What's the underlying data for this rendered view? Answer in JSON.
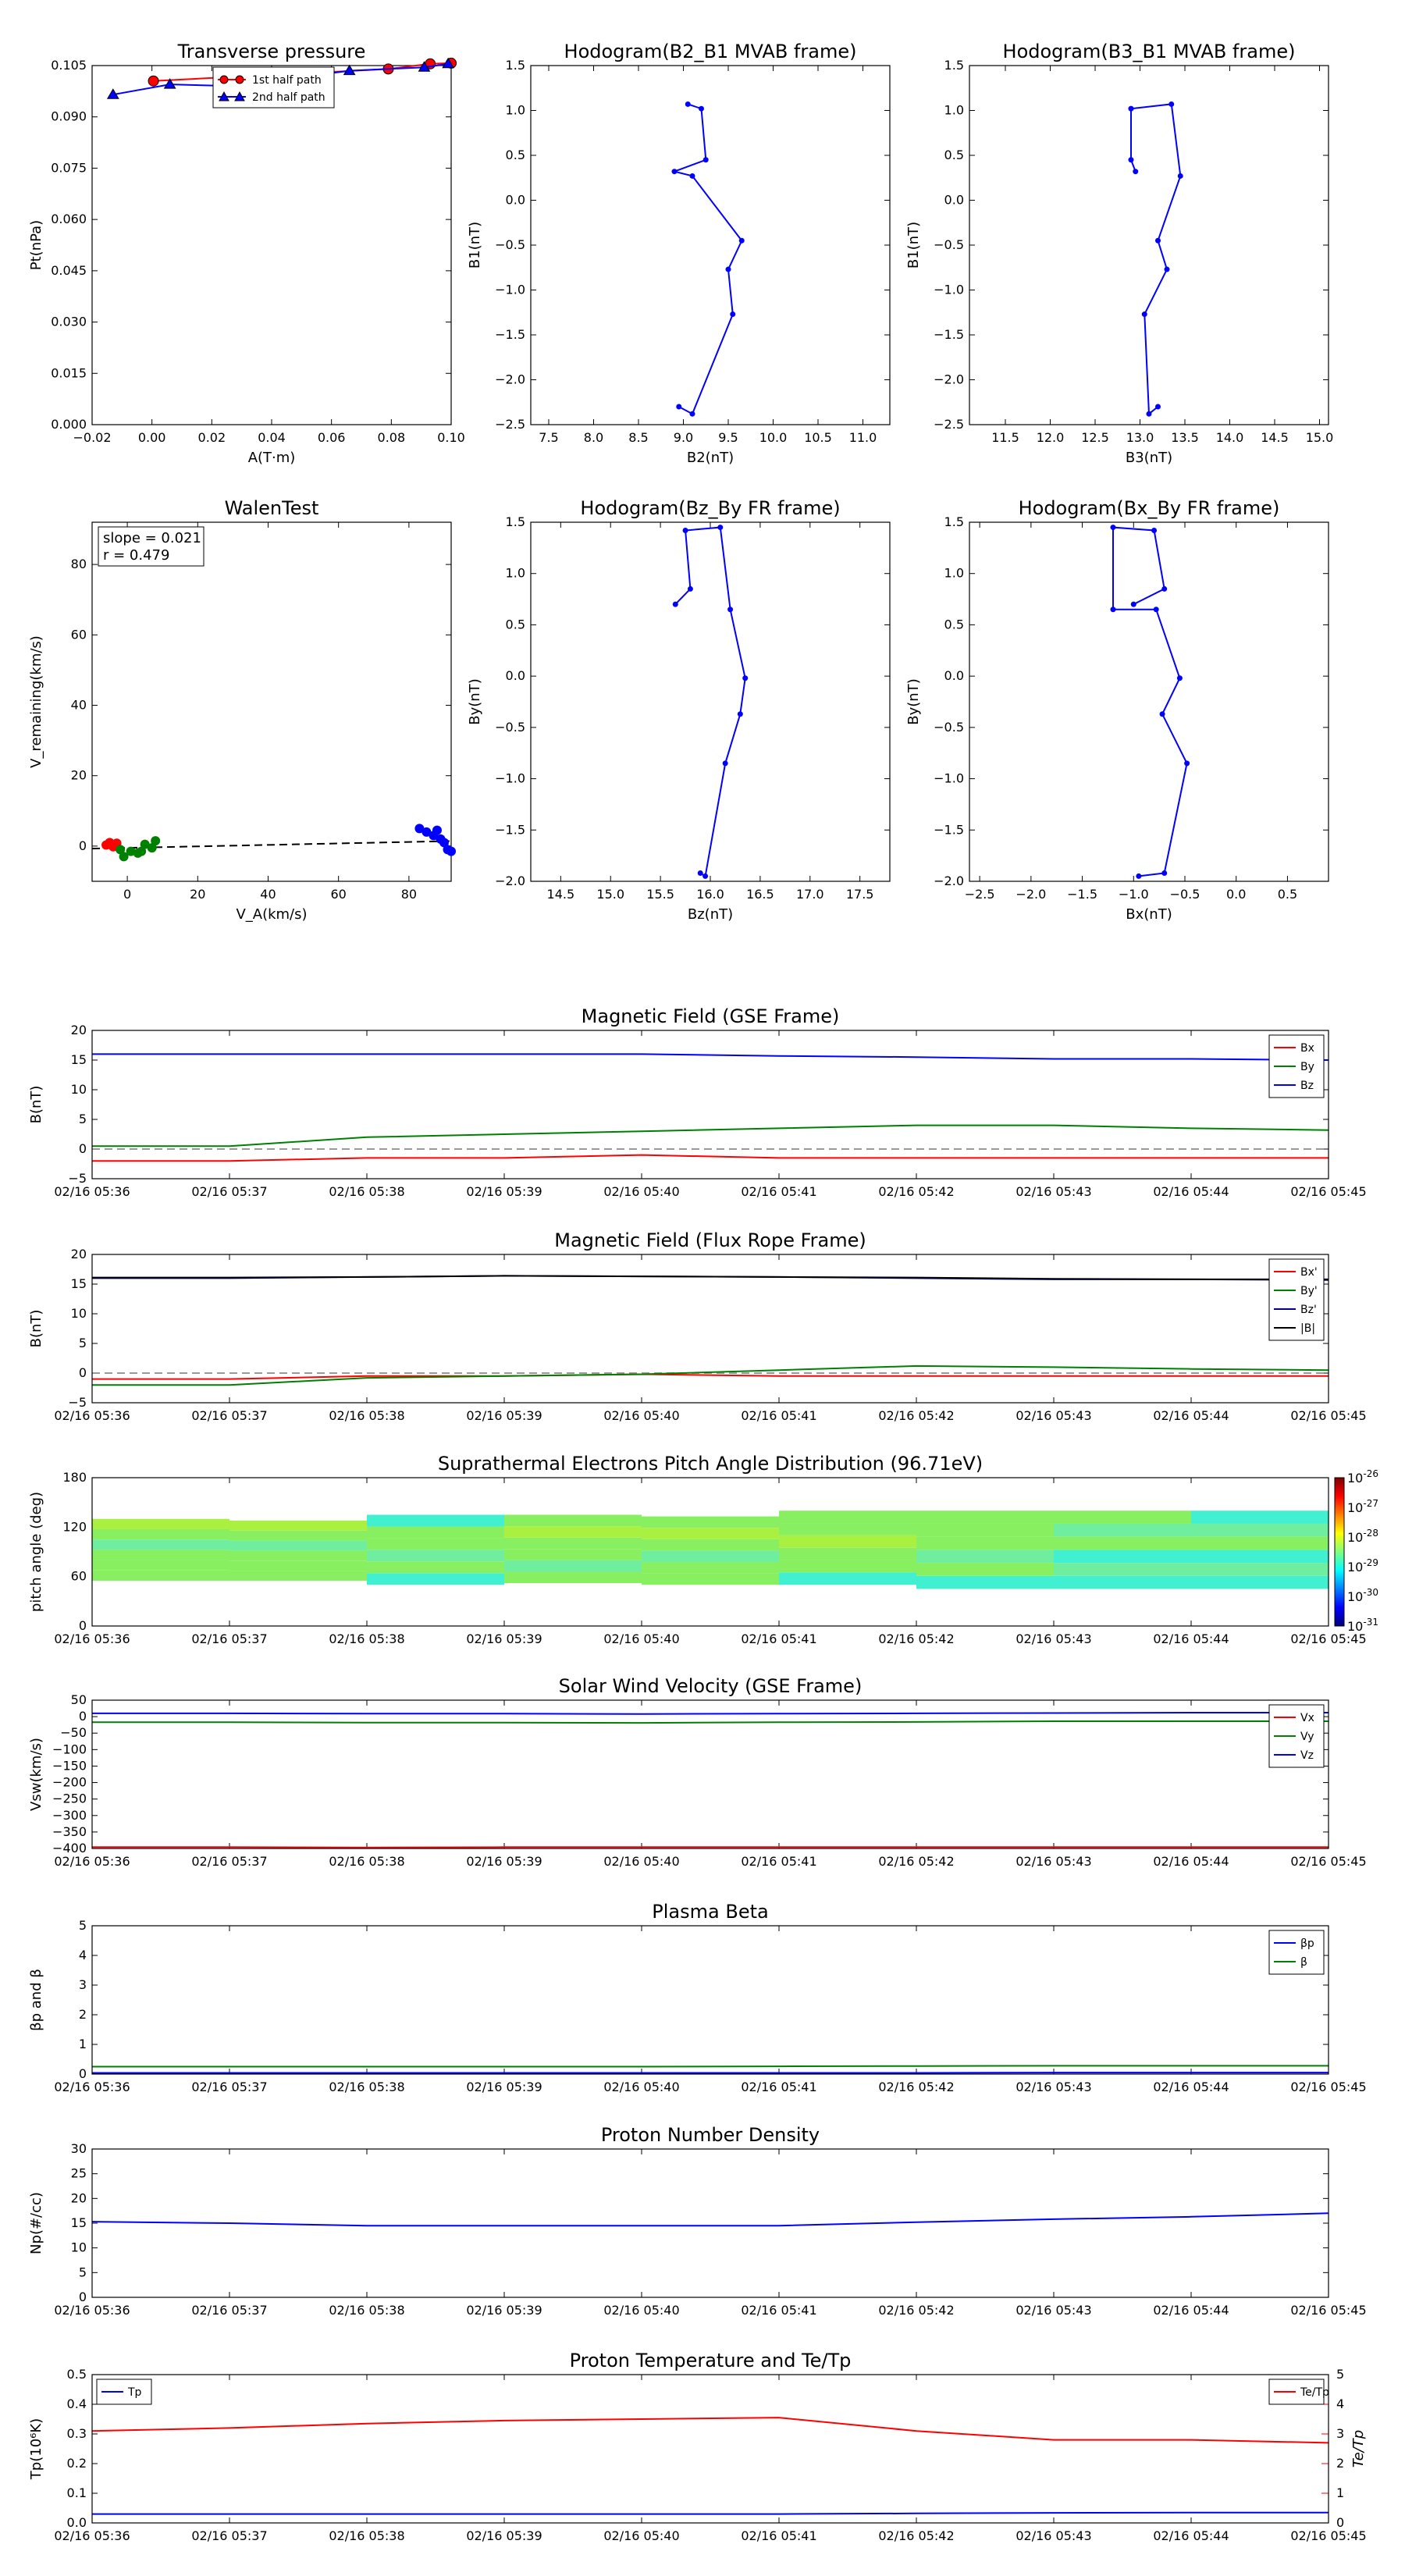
{
  "figure": {
    "background": "#ffffff"
  },
  "chart_data": [
    {
      "id": "pt",
      "type": "scatter",
      "title": "Transverse pressure",
      "xlabel": "A(T·m)",
      "ylabel": "Pt(nPa)",
      "xlim": [
        -0.02,
        0.1
      ],
      "ylim": [
        0,
        0.105
      ],
      "xticks": [
        -0.02,
        0.0,
        0.02,
        0.04,
        0.06,
        0.08,
        0.1
      ],
      "xticklabels": [
        "−0.02",
        "0.00",
        "0.02",
        "0.04",
        "0.06",
        "0.08",
        "0.10"
      ],
      "yticks": [
        0,
        0.015,
        0.03,
        0.045,
        0.06,
        0.075,
        0.09,
        0.105
      ],
      "yticklabels": [
        "0.000",
        "0.015",
        "0.030",
        "0.045",
        "0.060",
        "0.075",
        "0.090",
        "0.105"
      ],
      "legend": "top-center",
      "series": [
        {
          "name": "1st half path",
          "color": "#ff0000",
          "marker": "circle",
          "x": [
            0.0005,
            0.079,
            0.093,
            0.1
          ],
          "y": [
            0.1005,
            0.104,
            0.1055,
            0.1057
          ]
        },
        {
          "name": "2nd half path",
          "color": "#0000ff",
          "marker": "triangle",
          "x": [
            -0.013,
            0.006,
            0.027,
            0.066,
            0.091,
            0.099
          ],
          "y": [
            0.0965,
            0.0995,
            0.099,
            0.1035,
            0.1045,
            0.1055
          ]
        }
      ]
    },
    {
      "id": "hodo1",
      "type": "line",
      "title": "Hodogram(B2_B1 MVAB frame)",
      "xlabel": "B2(nT)",
      "ylabel": "B1(nT)",
      "xlim": [
        7.3,
        11.3
      ],
      "ylim": [
        -2.5,
        1.5
      ],
      "xticks": [
        7.5,
        8.0,
        8.5,
        9.0,
        9.5,
        10.0,
        10.5,
        11.0
      ],
      "xticklabels": [
        "7.5",
        "8.0",
        "8.5",
        "9.0",
        "9.5",
        "10.0",
        "10.5",
        "11.0"
      ],
      "yticks": [
        -2.5,
        -2.0,
        -1.5,
        -1.0,
        -0.5,
        0.0,
        0.5,
        1.0,
        1.5
      ],
      "yticklabels": [
        "−2.5",
        "−2.0",
        "−1.5",
        "−1.0",
        "−0.5",
        "0.0",
        "0.5",
        "1.0",
        "1.5"
      ],
      "series": [
        {
          "color": "#0000ff",
          "x": [
            9.05,
            9.2,
            9.25,
            8.9,
            9.1,
            9.65,
            9.5,
            9.55,
            9.1,
            8.95
          ],
          "y": [
            1.07,
            1.02,
            0.45,
            0.32,
            0.27,
            -0.45,
            -0.77,
            -1.27,
            -2.38,
            -2.3
          ]
        }
      ]
    },
    {
      "id": "hodo2",
      "type": "line",
      "title": "Hodogram(B3_B1 MVAB frame)",
      "xlabel": "B3(nT)",
      "ylabel": "B1(nT)",
      "xlim": [
        11.1,
        15.1
      ],
      "ylim": [
        -2.5,
        1.5
      ],
      "xticks": [
        11.5,
        12.0,
        12.5,
        13.0,
        13.5,
        14.0,
        14.5,
        15.0
      ],
      "xticklabels": [
        "11.5",
        "12.0",
        "12.5",
        "13.0",
        "13.5",
        "14.0",
        "14.5",
        "15.0"
      ],
      "yticks": [
        -2.5,
        -2.0,
        -1.5,
        -1.0,
        -0.5,
        0.0,
        0.5,
        1.0,
        1.5
      ],
      "yticklabels": [
        "−2.5",
        "−2.0",
        "−1.5",
        "−1.0",
        "−0.5",
        "0.0",
        "0.5",
        "1.0",
        "1.5"
      ],
      "series": [
        {
          "color": "#0000ff",
          "x": [
            12.9,
            13.35,
            13.45,
            13.2,
            13.3,
            13.05,
            13.1,
            13.2
          ],
          "y": [
            1.02,
            1.07,
            0.27,
            -0.45,
            -0.77,
            -1.27,
            -2.38,
            -2.3
          ]
        },
        {
          "color": "#0000ff",
          "x": [
            12.9,
            12.9,
            12.95
          ],
          "y": [
            1.02,
            0.45,
            0.32
          ]
        }
      ]
    },
    {
      "id": "walen",
      "type": "scatter",
      "title": "WalenTest",
      "xlabel": "V_A(km/s)",
      "ylabel": "V_remaining(km/s)",
      "xlim": [
        -10,
        92
      ],
      "ylim": [
        -10,
        92
      ],
      "xticks": [
        0,
        20,
        40,
        60,
        80
      ],
      "xticklabels": [
        "0",
        "20",
        "40",
        "60",
        "80"
      ],
      "yticks": [
        0,
        20,
        40,
        60,
        80
      ],
      "yticklabels": [
        "0",
        "20",
        "40",
        "60",
        "80"
      ],
      "annotations": [
        "slope = 0.021",
        "r = 0.479"
      ],
      "fit_line": {
        "slope": 0.021,
        "intercept": -0.5
      },
      "series": [
        {
          "color": "#ff0000",
          "x": [
            -6,
            -5,
            -4,
            -3
          ],
          "y": [
            0.3,
            1.0,
            -0.2,
            0.8
          ]
        },
        {
          "color": "#008000",
          "x": [
            -1,
            1,
            3,
            5,
            7,
            8,
            -2,
            4
          ],
          "y": [
            -3,
            -1.5,
            -2,
            0.5,
            -0.5,
            1.5,
            -1,
            -1.5
          ]
        },
        {
          "color": "#0000ff",
          "x": [
            83,
            85,
            87,
            88,
            89,
            90,
            91,
            92
          ],
          "y": [
            5,
            4,
            3,
            4.5,
            2,
            1,
            -1,
            -1.5
          ]
        }
      ]
    },
    {
      "id": "hodo3",
      "type": "line",
      "title": "Hodogram(Bz_By FR frame)",
      "xlabel": "Bz(nT)",
      "ylabel": "By(nT)",
      "xlim": [
        14.2,
        17.8
      ],
      "ylim": [
        -2.0,
        1.5
      ],
      "xticks": [
        14.5,
        15.0,
        15.5,
        16.0,
        16.5,
        17.0,
        17.5
      ],
      "xticklabels": [
        "14.5",
        "15.0",
        "15.5",
        "16.0",
        "16.5",
        "17.0",
        "17.5"
      ],
      "yticks": [
        -2.0,
        -1.5,
        -1.0,
        -0.5,
        0.0,
        0.5,
        1.0,
        1.5
      ],
      "yticklabels": [
        "−2.0",
        "−1.5",
        "−1.0",
        "−0.5",
        "0.0",
        "0.5",
        "1.0",
        "1.5"
      ],
      "series": [
        {
          "color": "#0000ff",
          "x": [
            15.65,
            15.8,
            15.75,
            16.1,
            16.2,
            16.35,
            16.3,
            16.15,
            15.95,
            15.9
          ],
          "y": [
            0.7,
            0.85,
            1.42,
            1.45,
            0.65,
            -0.02,
            -0.37,
            -0.85,
            -1.95,
            -1.92
          ]
        }
      ]
    },
    {
      "id": "hodo4",
      "type": "line",
      "title": "Hodogram(Bx_By FR frame)",
      "xlabel": "Bx(nT)",
      "ylabel": "By(nT)",
      "xlim": [
        -2.6,
        0.9
      ],
      "ylim": [
        -2.0,
        1.5
      ],
      "xticks": [
        -2.5,
        -2.0,
        -1.5,
        -1.0,
        -0.5,
        0.0,
        0.5
      ],
      "xticklabels": [
        "−2.5",
        "−2.0",
        "−1.5",
        "−1.0",
        "−0.5",
        "0.0",
        "0.5"
      ],
      "yticks": [
        -2.0,
        -1.5,
        -1.0,
        -0.5,
        0.0,
        0.5,
        1.0,
        1.5
      ],
      "yticklabels": [
        "−2.0",
        "−1.5",
        "−1.0",
        "−0.5",
        "0.0",
        "0.5",
        "1.0",
        "1.5"
      ],
      "series": [
        {
          "color": "#0000ff",
          "x": [
            -1.0,
            -0.7,
            -0.8,
            -1.2,
            -1.2,
            -0.78,
            -0.55,
            -0.72,
            -0.48,
            -0.7,
            -0.95
          ],
          "y": [
            0.7,
            0.85,
            1.42,
            1.45,
            0.65,
            0.65,
            -0.02,
            -0.37,
            -0.85,
            -1.92,
            -1.95
          ]
        }
      ]
    },
    {
      "id": "bgse",
      "type": "line",
      "title": "Magnetic Field (GSE Frame)",
      "ylabel": "B(nT)",
      "ylim": [
        -5,
        20
      ],
      "yticks": [
        -5,
        0,
        5,
        10,
        15,
        20
      ],
      "yticklabels": [
        "−5",
        "0",
        "5",
        "10",
        "15",
        "20"
      ],
      "zero_line": true,
      "legend": "top-right",
      "series": [
        {
          "name": "Bx",
          "color": "#ff0000",
          "values": [
            -2.0,
            -2.0,
            -1.5,
            -1.5,
            -1.0,
            -1.5,
            -1.5,
            -1.5,
            -1.5,
            -1.5
          ]
        },
        {
          "name": "By",
          "color": "#008000",
          "values": [
            0.5,
            0.5,
            2.0,
            2.5,
            3.0,
            3.5,
            4.0,
            4.0,
            3.5,
            3.2
          ]
        },
        {
          "name": "Bz",
          "color": "#0000ff",
          "values": [
            16.0,
            16.0,
            16.0,
            16.0,
            16.0,
            15.7,
            15.5,
            15.2,
            15.2,
            15.0
          ]
        }
      ]
    },
    {
      "id": "bfr",
      "type": "line",
      "title": "Magnetic Field (Flux Rope Frame)",
      "ylabel": "B(nT)",
      "ylim": [
        -5,
        20
      ],
      "yticks": [
        -5,
        0,
        5,
        10,
        15,
        20
      ],
      "yticklabels": [
        "−5",
        "0",
        "5",
        "10",
        "15",
        "20"
      ],
      "zero_line": true,
      "legend": "top-right",
      "series": [
        {
          "name": "Bx'",
          "color": "#ff0000",
          "values": [
            -1.0,
            -1.0,
            -0.5,
            -0.5,
            -0.2,
            -0.5,
            -0.5,
            -0.5,
            -0.5,
            -0.5
          ]
        },
        {
          "name": "By'",
          "color": "#008000",
          "values": [
            -2.0,
            -2.0,
            -0.8,
            -0.5,
            -0.2,
            0.5,
            1.2,
            1.0,
            0.7,
            0.5
          ]
        },
        {
          "name": "Bz'",
          "color": "#00008b",
          "values": [
            16.0,
            16.0,
            16.2,
            16.4,
            16.3,
            16.2,
            16.0,
            15.8,
            15.8,
            15.7
          ]
        },
        {
          "name": "|B|",
          "color": "#000000",
          "values": [
            16.1,
            16.1,
            16.2,
            16.4,
            16.3,
            16.2,
            16.1,
            15.9,
            15.8,
            15.8
          ]
        }
      ]
    },
    {
      "id": "pad",
      "type": "heatmap",
      "title": "Suprathermal Electrons Pitch Angle Distribution (96.71eV)",
      "ylabel": "pitch angle (deg)",
      "ylim": [
        0,
        180
      ],
      "yticks": [
        0,
        60,
        120,
        180
      ],
      "yticklabels": [
        "0",
        "60",
        "120",
        "180"
      ],
      "colorbar": {
        "ticks": [
          -26,
          -27,
          -28,
          -29,
          -30,
          -31
        ],
        "base": "10"
      },
      "columns": [
        {
          "lo": 55,
          "hi": 130,
          "bands": [
            "#88f060",
            "#88f060",
            "#88f060",
            "#70eea0",
            "#88f060",
            "#aaf040"
          ]
        },
        {
          "lo": 55,
          "hi": 128,
          "bands": [
            "#88f060",
            "#88f060",
            "#88f060",
            "#70eea0",
            "#88f060",
            "#aaf040"
          ]
        },
        {
          "lo": 50,
          "hi": 135,
          "bands": [
            "#40f0d0",
            "#88f060",
            "#70eea0",
            "#88f060",
            "#88f060",
            "#40f0d0"
          ]
        },
        {
          "lo": 52,
          "hi": 135,
          "bands": [
            "#88f060",
            "#70eea0",
            "#88f060",
            "#88f060",
            "#aaf040",
            "#88f060"
          ]
        },
        {
          "lo": 50,
          "hi": 133,
          "bands": [
            "#88f060",
            "#88f060",
            "#70eea0",
            "#88f060",
            "#aaf040",
            "#88f060"
          ]
        },
        {
          "lo": 50,
          "hi": 140,
          "bands": [
            "#40f0d0",
            "#88f060",
            "#88f060",
            "#aaf040",
            "#88f060",
            "#88f060"
          ]
        },
        {
          "lo": 45,
          "hi": 140,
          "bands": [
            "#40f0d0",
            "#88f060",
            "#70eea0",
            "#88f060",
            "#88f060",
            "#88f060"
          ]
        },
        {
          "lo": 45,
          "hi": 140,
          "bands": [
            "#40f0d0",
            "#70eea0",
            "#40f0d0",
            "#88f060",
            "#70eea0",
            "#88f060"
          ]
        },
        {
          "lo": 45,
          "hi": 140,
          "bands": [
            "#40f0d0",
            "#70eea0",
            "#40f0d0",
            "#88f060",
            "#70eea0",
            "#40f0d0"
          ]
        }
      ]
    },
    {
      "id": "vsw",
      "type": "line",
      "title": "Solar Wind Velocity (GSE Frame)",
      "ylabel": "Vsw(km/s)",
      "ylim": [
        -400,
        50
      ],
      "yticks": [
        -400,
        -350,
        -300,
        -250,
        -200,
        -150,
        -100,
        -50,
        0,
        50
      ],
      "yticklabels": [
        "−400",
        "−350",
        "−300",
        "−250",
        "−200",
        "−150",
        "−100",
        "−50",
        "0",
        "50"
      ],
      "legend": "top-right",
      "series": [
        {
          "name": "Vx",
          "color": "#ff0000",
          "values": [
            -396,
            -396,
            -397,
            -396,
            -396,
            -396,
            -396,
            -396,
            -396,
            -396
          ]
        },
        {
          "name": "Vy",
          "color": "#008000",
          "values": [
            -17,
            -17,
            -18,
            -18,
            -19,
            -17,
            -16,
            -14,
            -14,
            -14
          ]
        },
        {
          "name": "Vz",
          "color": "#0000ff",
          "values": [
            10,
            10,
            9,
            9,
            8,
            9,
            10,
            11,
            12,
            12
          ]
        }
      ]
    },
    {
      "id": "beta",
      "type": "line",
      "title": "Plasma Beta",
      "ylabel": "βp and β",
      "ylim": [
        0,
        5
      ],
      "yticks": [
        0,
        1,
        2,
        3,
        4,
        5
      ],
      "yticklabels": [
        "0",
        "1",
        "2",
        "3",
        "4",
        "5"
      ],
      "legend": "top-right",
      "series": [
        {
          "name": "βp",
          "color": "#0000ff",
          "values": [
            0.04,
            0.04,
            0.04,
            0.04,
            0.04,
            0.04,
            0.04,
            0.05,
            0.05,
            0.05
          ]
        },
        {
          "name": "β",
          "color": "#008000",
          "values": [
            0.25,
            0.25,
            0.25,
            0.25,
            0.25,
            0.26,
            0.27,
            0.28,
            0.28,
            0.28
          ]
        }
      ]
    },
    {
      "id": "np",
      "type": "line",
      "title": "Proton Number Density",
      "ylabel": "Np(#/cc)",
      "ylim": [
        0,
        30
      ],
      "yticks": [
        0,
        5,
        10,
        15,
        20,
        25,
        30
      ],
      "yticklabels": [
        "0",
        "5",
        "10",
        "15",
        "20",
        "25",
        "30"
      ],
      "series": [
        {
          "color": "#0000ff",
          "values": [
            15.3,
            15.0,
            14.5,
            14.5,
            14.5,
            14.5,
            15.2,
            15.8,
            16.3,
            17.0
          ]
        }
      ]
    },
    {
      "id": "tp",
      "type": "line",
      "title": "Proton Temperature and Te/Tp",
      "ylabel": "Tp(10⁶K)",
      "ylabel2": "Te/Tp",
      "ylim": [
        0,
        0.5
      ],
      "yticks": [
        0,
        0.1,
        0.2,
        0.3,
        0.4,
        0.5
      ],
      "yticklabels": [
        "0.0",
        "0.1",
        "0.2",
        "0.3",
        "0.4",
        "0.5"
      ],
      "ylim2": [
        0,
        5
      ],
      "yticks2": [
        0,
        1,
        2,
        3,
        4,
        5
      ],
      "yticklabels2": [
        "0",
        "1",
        "2",
        "3",
        "4",
        "5"
      ],
      "legend": "top-left",
      "series": [
        {
          "name": "Tp",
          "color": "#0000ff",
          "axis": 1,
          "values": [
            0.03,
            0.03,
            0.03,
            0.03,
            0.03,
            0.03,
            0.032,
            0.034,
            0.035,
            0.035
          ]
        },
        {
          "name": "Te/Tp",
          "color": "#ff0000",
          "axis": 2,
          "values": [
            3.1,
            3.2,
            3.35,
            3.45,
            3.5,
            3.55,
            3.1,
            2.8,
            2.8,
            2.7
          ]
        }
      ]
    }
  ],
  "time_axis": {
    "labels": [
      "02/16 05:36",
      "02/16 05:37",
      "02/16 05:38",
      "02/16 05:39",
      "02/16 05:40",
      "02/16 05:41",
      "02/16 05:42",
      "02/16 05:43",
      "02/16 05:44",
      "02/16 05:45"
    ]
  }
}
